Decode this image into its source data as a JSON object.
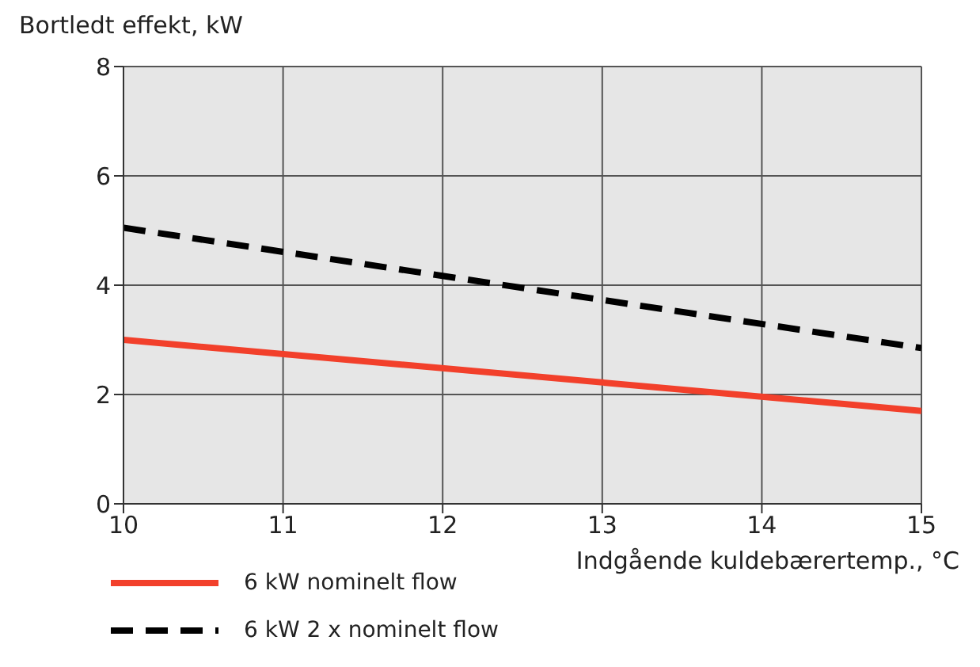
{
  "chart_data": {
    "type": "line",
    "xlabel": "Indgående kuldebærertemp., °C",
    "ylabel": "Bortledt effekt, kW",
    "x": [
      10,
      15
    ],
    "series": [
      {
        "name": "6 kW nominelt flow",
        "color": "#f2402b",
        "values": [
          3.0,
          1.7
        ],
        "line_style": "solid"
      },
      {
        "name": "6 kW 2 x nominelt flow",
        "color": "#000000",
        "values": [
          5.05,
          2.85
        ],
        "line_style": "dashed"
      }
    ],
    "xlim": [
      10,
      15
    ],
    "xticks": [
      10,
      11,
      12,
      13,
      14,
      15
    ],
    "ylim": [
      0,
      8
    ],
    "yticks": [
      0,
      2,
      4,
      6,
      8
    ],
    "grid": true,
    "legend": "bottom",
    "marker": "none"
  }
}
